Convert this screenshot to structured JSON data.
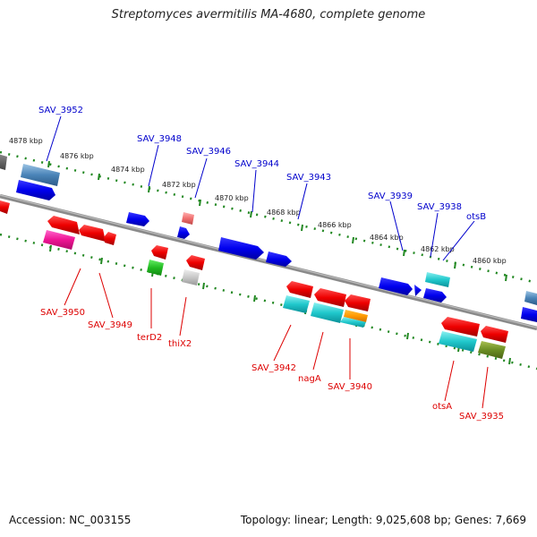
{
  "title": "Streptomyces avermitilis MA-4680, complete genome",
  "footer": {
    "accession": "Accession: NC_003155",
    "summary": "Topology: linear; Length: 9,025,608 bp; Genes: 7,669"
  },
  "colors": {
    "plus_strand_label": "#0000cc",
    "minus_strand_label": "#dd0000",
    "ruler_ticks": "#228822",
    "backbone": "#888888"
  },
  "ruler_ticks_kbp": [
    "4878 kbp",
    "4876 kbp",
    "4874 kbp",
    "4872 kbp",
    "4870 kbp",
    "4868 kbp",
    "4866 kbp",
    "4864 kbp",
    "4862 kbp",
    "4860 kbp"
  ],
  "plus_strand_genes": [
    "SAV_3952",
    "SAV_3948",
    "SAV_3946",
    "SAV_3944",
    "SAV_3943",
    "SAV_3939",
    "SAV_3938",
    "otsB"
  ],
  "minus_strand_genes": [
    "SAV_3950",
    "SAV_3949",
    "terD2",
    "thiX2",
    "SAV_3942",
    "nagA",
    "SAV_3940",
    "otsA",
    "SAV_3935"
  ]
}
